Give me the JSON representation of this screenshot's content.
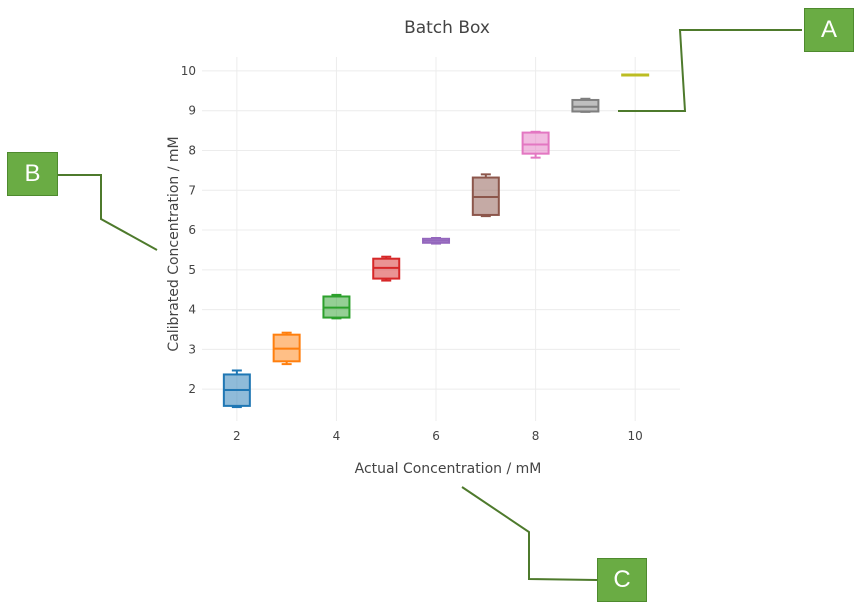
{
  "chart_data": {
    "type": "box",
    "title": "Batch Box",
    "xlabel": "Actual Concentration / mM",
    "ylabel": "Calibrated Concentration / mM",
    "xlim": [
      1.3,
      10.9
    ],
    "ylim": [
      1.2,
      10.35
    ],
    "xticks": [
      2,
      4,
      6,
      8,
      10
    ],
    "yticks": [
      2,
      3,
      4,
      5,
      6,
      7,
      8,
      9,
      10
    ],
    "grid": true,
    "legend": "none",
    "series": [
      {
        "x": 2,
        "min": 1.55,
        "q1": 1.58,
        "median": 1.98,
        "q3": 2.37,
        "max": 2.47,
        "color": "#1f77b4"
      },
      {
        "x": 3,
        "min": 2.63,
        "q1": 2.7,
        "median": 3.02,
        "q3": 3.37,
        "max": 3.42,
        "color": "#ff7f0e"
      },
      {
        "x": 4,
        "min": 3.78,
        "q1": 3.8,
        "median": 4.05,
        "q3": 4.33,
        "max": 4.37,
        "color": "#2ca02c"
      },
      {
        "x": 5,
        "min": 4.73,
        "q1": 4.78,
        "median": 5.05,
        "q3": 5.28,
        "max": 5.33,
        "color": "#d62728"
      },
      {
        "x": 6,
        "min": 5.66,
        "q1": 5.68,
        "median": 5.73,
        "q3": 5.78,
        "max": 5.8,
        "color": "#9467bd"
      },
      {
        "x": 7,
        "min": 6.35,
        "q1": 6.38,
        "median": 6.83,
        "q3": 7.32,
        "max": 7.4,
        "color": "#8c564b"
      },
      {
        "x": 8,
        "min": 7.82,
        "q1": 7.92,
        "median": 8.15,
        "q3": 8.45,
        "max": 8.47,
        "color": "#e377c2"
      },
      {
        "x": 9,
        "min": 8.97,
        "q1": 8.98,
        "median": 9.1,
        "q3": 9.27,
        "max": 9.3,
        "color": "#7f7f7f"
      },
      {
        "x": 10,
        "min": 9.89,
        "q1": 9.89,
        "median": 9.9,
        "q3": 9.91,
        "max": 9.91,
        "color": "#bcbd22"
      }
    ]
  },
  "callouts": {
    "a": "A",
    "b": "B",
    "c": "C",
    "color": "#6aac44",
    "line_color": "#4e7a2c"
  }
}
